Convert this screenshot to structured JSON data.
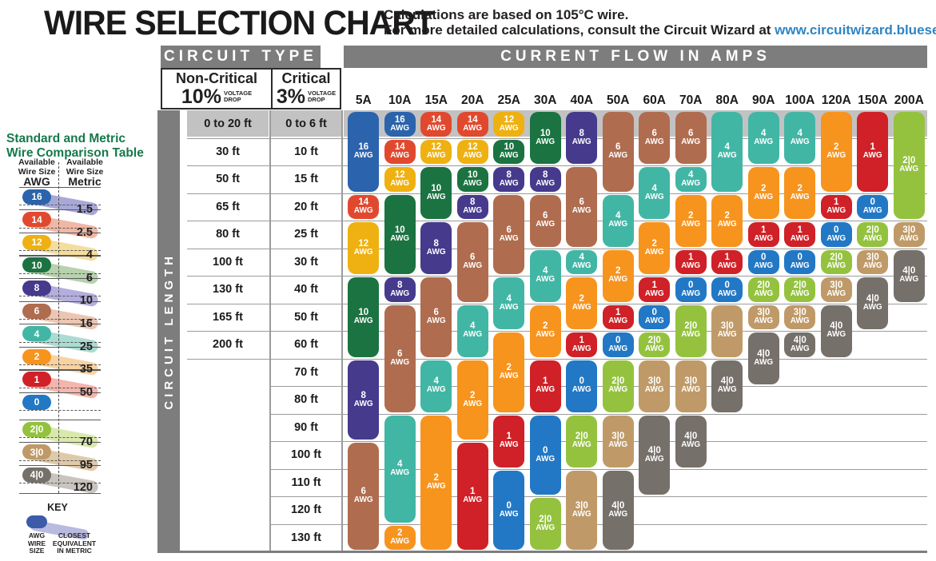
{
  "page": {
    "title": "WIRE SELECTION CHART",
    "subtitle_line1": "Calculations are based on 105°C wire.",
    "subtitle_line2": "For more detailed calculations, consult the Circuit Wizard at ",
    "subtitle_link": "www.circuitwizard.bluesea.com"
  },
  "headers": {
    "circuit_type": "CIRCUIT TYPE",
    "current_flow": "CURRENT FLOW IN AMPS",
    "circuit_length": "CIRCUIT LENGTH",
    "non_critical_title": "Non-Critical",
    "non_critical_pct": "10%",
    "critical_title": "Critical",
    "critical_pct": "3%",
    "voltage_drop_line1": "VOLTAGE",
    "voltage_drop_line2": "DROP"
  },
  "colors": {
    "16": "#2b63ac",
    "14": "#e1492e",
    "12": "#eeb111",
    "10": "#1b7341",
    "8": "#463a8d",
    "6": "#b06c4f",
    "4": "#42b6a5",
    "2": "#f7941e",
    "1": "#cf2127",
    "0": "#2278c5",
    "2|0": "#94c23f",
    "3|0": "#bf9a68",
    "4|0": "#76706a",
    "header_gray": "#7d7d7d",
    "band_gray": "#c3c2c2",
    "grid_line": "#9b9b9b",
    "link_blue": "#2d85c5",
    "comparison_green": "#15794b",
    "key_pill_blue": "#3c5ba9",
    "key_swoosh": "#b9badf"
  },
  "chart_data": {
    "type": "heatmap",
    "title": "WIRE SELECTION CHART",
    "x_categories": [
      "5A",
      "10A",
      "15A",
      "20A",
      "25A",
      "30A",
      "40A",
      "50A",
      "60A",
      "70A",
      "80A",
      "90A",
      "100A",
      "120A",
      "150A",
      "200A"
    ],
    "rows": [
      {
        "non_critical": "0 to 20 ft",
        "critical": "0 to 6 ft"
      },
      {
        "non_critical": "30 ft",
        "critical": "10 ft"
      },
      {
        "non_critical": "50 ft",
        "critical": "15 ft"
      },
      {
        "non_critical": "65 ft",
        "critical": "20 ft"
      },
      {
        "non_critical": "80 ft",
        "critical": "25 ft"
      },
      {
        "non_critical": "100 ft",
        "critical": "30 ft"
      },
      {
        "non_critical": "130 ft",
        "critical": "40 ft"
      },
      {
        "non_critical": "165 ft",
        "critical": "50 ft"
      },
      {
        "non_critical": "200 ft",
        "critical": "60 ft"
      },
      {
        "non_critical": "",
        "critical": "70 ft"
      },
      {
        "non_critical": "",
        "critical": "80 ft"
      },
      {
        "non_critical": "",
        "critical": "90 ft"
      },
      {
        "non_critical": "",
        "critical": "100 ft"
      },
      {
        "non_critical": "",
        "critical": "110 ft"
      },
      {
        "non_critical": "",
        "critical": "120 ft"
      },
      {
        "non_critical": "",
        "critical": "130 ft"
      }
    ],
    "unit_suffix": "AWG",
    "columns": [
      {
        "amp": "5A",
        "segments": [
          {
            "awg": "16",
            "rows": [
              1,
              3
            ]
          },
          {
            "awg": "14",
            "rows": [
              4,
              4
            ]
          },
          {
            "awg": "12",
            "rows": [
              5,
              6
            ]
          },
          {
            "awg": "10",
            "rows": [
              7,
              9
            ]
          },
          {
            "awg": "8",
            "rows": [
              10,
              12
            ]
          },
          {
            "awg": "6",
            "rows": [
              13,
              16
            ]
          }
        ]
      },
      {
        "amp": "10A",
        "segments": [
          {
            "awg": "16",
            "rows": [
              1,
              1
            ]
          },
          {
            "awg": "14",
            "rows": [
              2,
              2
            ]
          },
          {
            "awg": "12",
            "rows": [
              3,
              3
            ]
          },
          {
            "awg": "10",
            "rows": [
              4,
              6
            ]
          },
          {
            "awg": "8",
            "rows": [
              7,
              7
            ]
          },
          {
            "awg": "6",
            "rows": [
              8,
              11
            ]
          },
          {
            "awg": "4",
            "rows": [
              12,
              15
            ]
          },
          {
            "awg": "2",
            "rows": [
              16,
              16
            ]
          }
        ]
      },
      {
        "amp": "15A",
        "segments": [
          {
            "awg": "14",
            "rows": [
              1,
              1
            ]
          },
          {
            "awg": "12",
            "rows": [
              2,
              2
            ]
          },
          {
            "awg": "10",
            "rows": [
              3,
              4
            ]
          },
          {
            "awg": "8",
            "rows": [
              5,
              6
            ]
          },
          {
            "awg": "6",
            "rows": [
              7,
              9
            ]
          },
          {
            "awg": "4",
            "rows": [
              10,
              11
            ]
          },
          {
            "awg": "2",
            "rows": [
              12,
              16
            ]
          }
        ]
      },
      {
        "amp": "20A",
        "segments": [
          {
            "awg": "14",
            "rows": [
              1,
              1
            ]
          },
          {
            "awg": "12",
            "rows": [
              2,
              2
            ]
          },
          {
            "awg": "10",
            "rows": [
              3,
              3
            ]
          },
          {
            "awg": "8",
            "rows": [
              4,
              4
            ]
          },
          {
            "awg": "6",
            "rows": [
              5,
              7
            ]
          },
          {
            "awg": "4",
            "rows": [
              8,
              9
            ]
          },
          {
            "awg": "2",
            "rows": [
              10,
              12
            ]
          },
          {
            "awg": "1",
            "rows": [
              13,
              16
            ]
          }
        ]
      },
      {
        "amp": "25A",
        "segments": [
          {
            "awg": "12",
            "rows": [
              1,
              1
            ]
          },
          {
            "awg": "10",
            "rows": [
              2,
              2
            ]
          },
          {
            "awg": "8",
            "rows": [
              3,
              3
            ]
          },
          {
            "awg": "6",
            "rows": [
              4,
              6
            ]
          },
          {
            "awg": "4",
            "rows": [
              7,
              8
            ]
          },
          {
            "awg": "2",
            "rows": [
              9,
              11
            ]
          },
          {
            "awg": "1",
            "rows": [
              12,
              13
            ]
          },
          {
            "awg": "0",
            "rows": [
              14,
              16
            ]
          }
        ]
      },
      {
        "amp": "30A",
        "segments": [
          {
            "awg": "10",
            "rows": [
              1,
              2
            ]
          },
          {
            "awg": "8",
            "rows": [
              3,
              3
            ]
          },
          {
            "awg": "6",
            "rows": [
              4,
              5
            ]
          },
          {
            "awg": "4",
            "rows": [
              6,
              7
            ]
          },
          {
            "awg": "2",
            "rows": [
              8,
              9
            ]
          },
          {
            "awg": "1",
            "rows": [
              10,
              11
            ]
          },
          {
            "awg": "0",
            "rows": [
              12,
              14
            ]
          },
          {
            "awg": "2|0",
            "rows": [
              15,
              16
            ]
          }
        ]
      },
      {
        "amp": "40A",
        "segments": [
          {
            "awg": "8",
            "rows": [
              1,
              2
            ]
          },
          {
            "awg": "6",
            "rows": [
              3,
              5
            ]
          },
          {
            "awg": "4",
            "rows": [
              6,
              6
            ]
          },
          {
            "awg": "2",
            "rows": [
              7,
              8
            ]
          },
          {
            "awg": "1",
            "rows": [
              9,
              9
            ]
          },
          {
            "awg": "0",
            "rows": [
              10,
              11
            ]
          },
          {
            "awg": "2|0",
            "rows": [
              12,
              13
            ]
          },
          {
            "awg": "3|0",
            "rows": [
              14,
              16
            ]
          }
        ]
      },
      {
        "amp": "50A",
        "segments": [
          {
            "awg": "6",
            "rows": [
              1,
              3
            ]
          },
          {
            "awg": "4",
            "rows": [
              4,
              5
            ]
          },
          {
            "awg": "2",
            "rows": [
              6,
              7
            ]
          },
          {
            "awg": "1",
            "rows": [
              8,
              8
            ]
          },
          {
            "awg": "0",
            "rows": [
              9,
              9
            ]
          },
          {
            "awg": "2|0",
            "rows": [
              10,
              11
            ]
          },
          {
            "awg": "3|0",
            "rows": [
              12,
              13
            ]
          },
          {
            "awg": "4|0",
            "rows": [
              14,
              16
            ]
          }
        ]
      },
      {
        "amp": "60A",
        "segments": [
          {
            "awg": "6",
            "rows": [
              1,
              2
            ]
          },
          {
            "awg": "4",
            "rows": [
              3,
              4
            ]
          },
          {
            "awg": "2",
            "rows": [
              5,
              6
            ]
          },
          {
            "awg": "1",
            "rows": [
              7,
              7
            ]
          },
          {
            "awg": "0",
            "rows": [
              8,
              8
            ]
          },
          {
            "awg": "2|0",
            "rows": [
              9,
              9
            ]
          },
          {
            "awg": "3|0",
            "rows": [
              10,
              11
            ]
          },
          {
            "awg": "4|0",
            "rows": [
              12,
              14
            ]
          }
        ]
      },
      {
        "amp": "70A",
        "segments": [
          {
            "awg": "6",
            "rows": [
              1,
              2
            ]
          },
          {
            "awg": "4",
            "rows": [
              3,
              3
            ]
          },
          {
            "awg": "2",
            "rows": [
              4,
              5
            ]
          },
          {
            "awg": "1",
            "rows": [
              6,
              6
            ]
          },
          {
            "awg": "0",
            "rows": [
              7,
              7
            ]
          },
          {
            "awg": "2|0",
            "rows": [
              8,
              9
            ]
          },
          {
            "awg": "3|0",
            "rows": [
              10,
              11
            ]
          },
          {
            "awg": "4|0",
            "rows": [
              12,
              13
            ]
          }
        ]
      },
      {
        "amp": "80A",
        "segments": [
          {
            "awg": "4",
            "rows": [
              1,
              3
            ]
          },
          {
            "awg": "2",
            "rows": [
              4,
              5
            ]
          },
          {
            "awg": "1",
            "rows": [
              6,
              6
            ]
          },
          {
            "awg": "0",
            "rows": [
              7,
              7
            ]
          },
          {
            "awg": "3|0",
            "rows": [
              8,
              9
            ]
          },
          {
            "awg": "4|0",
            "rows": [
              10,
              11
            ]
          }
        ]
      },
      {
        "amp": "90A",
        "segments": [
          {
            "awg": "4",
            "rows": [
              1,
              2
            ]
          },
          {
            "awg": "2",
            "rows": [
              3,
              4
            ]
          },
          {
            "awg": "1",
            "rows": [
              5,
              5
            ]
          },
          {
            "awg": "0",
            "rows": [
              6,
              6
            ]
          },
          {
            "awg": "2|0",
            "rows": [
              7,
              7
            ]
          },
          {
            "awg": "3|0",
            "rows": [
              8,
              8
            ]
          },
          {
            "awg": "4|0",
            "rows": [
              9,
              10
            ]
          }
        ]
      },
      {
        "amp": "100A",
        "segments": [
          {
            "awg": "4",
            "rows": [
              1,
              2
            ]
          },
          {
            "awg": "2",
            "rows": [
              3,
              4
            ]
          },
          {
            "awg": "1",
            "rows": [
              5,
              5
            ]
          },
          {
            "awg": "0",
            "rows": [
              6,
              6
            ]
          },
          {
            "awg": "2|0",
            "rows": [
              7,
              7
            ]
          },
          {
            "awg": "3|0",
            "rows": [
              8,
              8
            ]
          },
          {
            "awg": "4|0",
            "rows": [
              9,
              9
            ]
          }
        ]
      },
      {
        "amp": "120A",
        "segments": [
          {
            "awg": "2",
            "rows": [
              1,
              3
            ]
          },
          {
            "awg": "1",
            "rows": [
              4,
              4
            ]
          },
          {
            "awg": "0",
            "rows": [
              5,
              5
            ]
          },
          {
            "awg": "2|0",
            "rows": [
              6,
              6
            ]
          },
          {
            "awg": "3|0",
            "rows": [
              7,
              7
            ]
          },
          {
            "awg": "4|0",
            "rows": [
              8,
              9
            ]
          }
        ]
      },
      {
        "amp": "150A",
        "segments": [
          {
            "awg": "1",
            "rows": [
              1,
              3
            ]
          },
          {
            "awg": "0",
            "rows": [
              4,
              4
            ]
          },
          {
            "awg": "2|0",
            "rows": [
              5,
              5
            ]
          },
          {
            "awg": "3|0",
            "rows": [
              6,
              6
            ]
          },
          {
            "awg": "4|0",
            "rows": [
              7,
              8
            ]
          }
        ]
      },
      {
        "amp": "200A",
        "segments": [
          {
            "awg": "2|0",
            "rows": [
              1,
              4
            ]
          },
          {
            "awg": "3|0",
            "rows": [
              5,
              5
            ]
          },
          {
            "awg": "4|0",
            "rows": [
              6,
              7
            ]
          }
        ]
      }
    ]
  },
  "comparison": {
    "title_line1": "Standard and Metric",
    "title_line2": "Wire Comparison Table",
    "col1_header_line1": "Available",
    "col1_header_line2": "Wire Size",
    "col1_unit": "AWG",
    "col2_header_line1": "Available",
    "col2_header_line2": "Wire Size",
    "col2_unit": "Metric",
    "pairs": [
      {
        "awg": "16",
        "metric": "1.5",
        "swoosh": "#a8a8d8"
      },
      {
        "awg": "14",
        "metric": "2.5",
        "swoosh": "#f0b7a4"
      },
      {
        "awg": "12",
        "metric": "4",
        "swoosh": "#f5dd9e"
      },
      {
        "awg": "10",
        "metric": "6",
        "swoosh": "#b7d2ae"
      },
      {
        "awg": "8",
        "metric": "10",
        "swoosh": "#b4aede"
      },
      {
        "awg": "6",
        "metric": "16",
        "swoosh": "#ecc6b2"
      },
      {
        "awg": "4",
        "metric": "25",
        "swoosh": "#abdcd3"
      },
      {
        "awg": "2",
        "metric": "35",
        "swoosh": "#f8d3a2"
      },
      {
        "awg": "1",
        "metric": "50",
        "swoosh": "#f3b5ad"
      },
      {
        "awg": "0",
        "metric": "",
        "swoosh": ""
      },
      {
        "awg": "2|0",
        "metric": "70",
        "swoosh": "#d9e9ac"
      },
      {
        "awg": "3|0",
        "metric": "95",
        "swoosh": "#decaa9"
      },
      {
        "awg": "4|0",
        "metric": "120",
        "swoosh": "#c9c4be"
      }
    ]
  },
  "key": {
    "title": "KEY",
    "left_label_line1": "AWG",
    "left_label_line2": "WIRE",
    "left_label_line3": "SIZE",
    "right_label_line1": "CLOSEST",
    "right_label_line2": "EQUIVALENT",
    "right_label_line3": "IN METRIC"
  }
}
